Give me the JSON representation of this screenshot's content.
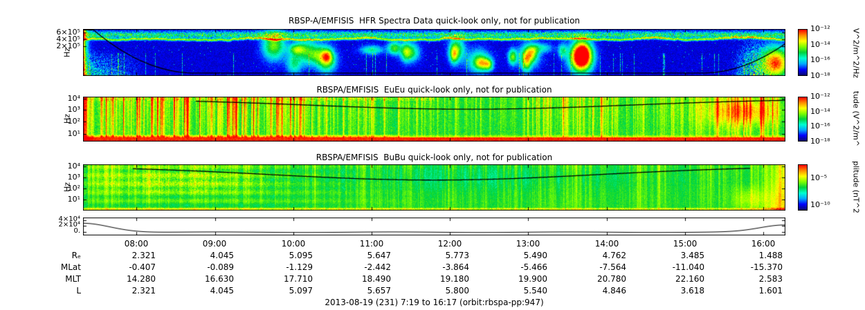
{
  "colormap": [
    "#08086e",
    "#0000ff",
    "#00a8ff",
    "#00ffd0",
    "#00d23c",
    "#7dff00",
    "#ffff00",
    "#ff8c00",
    "#ff0000"
  ],
  "xaxis": {
    "tick_labels": [
      "08:00",
      "09:00",
      "10:00",
      "11:00",
      "12:00",
      "13:00",
      "14:00",
      "15:00",
      "16:00"
    ]
  },
  "caption": "2013-08-19 (231) 7:19 to 16:17 (orbit:rbspa-pp:947)",
  "chart_data": [
    {
      "type": "heatmap",
      "title": "RBSP-A/EMFISIS  HFR Spectra Data quick-look only, not for publication",
      "ylabel": "Hz",
      "ytick_labels": [
        "6×10⁵",
        "4×10⁵",
        "2×10⁵"
      ],
      "colorbar_ticks": [
        "10⁻¹²",
        "10⁻¹⁴",
        "10⁻¹⁶",
        "10⁻¹⁸"
      ],
      "colorbar_label": "V^2/m^2/Hz",
      "description": "HFR spectrogram: dark blue background, green/yellow continuum band near top, cyan emission patches mid-orbit, intense red at orbit start (left edge) and end (right edge), black fce trace dipping to panel bottom through the middle of the orbit"
    },
    {
      "type": "heatmap",
      "title": "RBSPA/EMFISIS  EuEu quick-look only, not for publication",
      "ylabel": "Hz",
      "ytick_labels": [
        "10⁴",
        "10³",
        "10²",
        "10¹"
      ],
      "colorbar_ticks": [
        "10⁻¹²",
        "10⁻¹⁴",
        "10⁻¹⁶",
        "10⁻¹⁸"
      ],
      "colorbar_label": "tude (V^2/m^",
      "description": "Electric field EuEu spectrogram: green background with many red/orange vertical burst streaks (strongest in first third), solid red band at lowest frequencies, enhanced orange activity near end of interval, shallow black fce arc near panel top"
    },
    {
      "type": "heatmap",
      "title": "RBSPA/EMFISIS  BuBu quick-look only, not for publication",
      "ylabel": "Hz",
      "ytick_labels": [
        "10⁴",
        "10³",
        "10²",
        "10¹"
      ],
      "colorbar_ticks": [
        "10⁻⁵",
        "10⁻¹⁰"
      ],
      "colorbar_label": "plitude (nT^2",
      "description": "Magnetic field BuBu spectrogram: mostly green/cyan, slightly brighter structured emission at start, faint vertical streaks, yellow-green enhancement at lowest frequencies and at right edge, shallow black fce arc near panel top"
    },
    {
      "type": "line",
      "ytick_labels": [
        "4×10⁴",
        "2×10⁴",
        "0."
      ],
      "description": "auxiliary trace: high near both orbit ends (perigee), flat near zero across the middle of the interval"
    },
    {
      "type": "table",
      "columns": [
        "08:00",
        "09:00",
        "10:00",
        "11:00",
        "12:00",
        "13:00",
        "14:00",
        "15:00",
        "16:00"
      ],
      "rows": [
        {
          "label": "Rₑ",
          "values": [
            "2.321",
            "4.045",
            "5.095",
            "5.647",
            "5.773",
            "5.490",
            "4.762",
            "3.485",
            "1.488"
          ]
        },
        {
          "label": "MLat",
          "values": [
            "-0.407",
            "-0.089",
            "-1.129",
            "-2.442",
            "-3.864",
            "-5.466",
            "-7.564",
            "-11.040",
            "-15.370"
          ]
        },
        {
          "label": "MLT",
          "values": [
            "14.280",
            "16.630",
            "17.710",
            "18.490",
            "19.180",
            "19.900",
            "20.780",
            "22.160",
            "2.583"
          ]
        },
        {
          "label": "L",
          "values": [
            "2.321",
            "4.045",
            "5.097",
            "5.657",
            "5.800",
            "5.540",
            "4.846",
            "3.618",
            "1.601"
          ]
        }
      ]
    }
  ]
}
